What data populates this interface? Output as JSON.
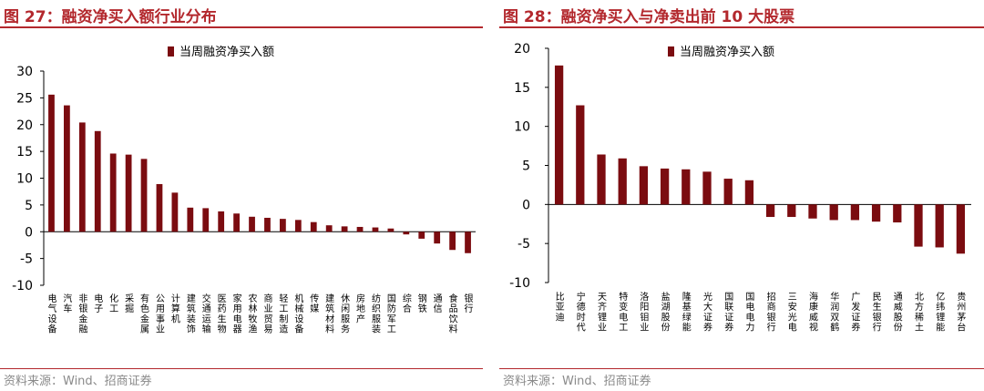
{
  "source_text": "资料来源：Wind、招商证券",
  "colors": {
    "bar": "#7b0c10",
    "title": "#b3282d",
    "source": "#8a8a8a",
    "negative_tick": "#ff0000"
  },
  "chart_data": [
    {
      "type": "bar",
      "title": "图 27：融资净买入额行业分布",
      "legend": "当周融资净买入额",
      "legend_position": "top-center",
      "ylim": [
        -10,
        30
      ],
      "yticks": [
        -10,
        -5,
        0,
        5,
        10,
        15,
        20,
        25,
        30
      ],
      "categories": [
        "电气设备",
        "汽车",
        "非银金融",
        "电子",
        "化工",
        "采掘",
        "有色金属",
        "公用事业",
        "计算机",
        "建筑装饰",
        "交通运输",
        "医药生物",
        "家用电器",
        "农林牧渔",
        "商业贸易",
        "轻工制造",
        "机械设备",
        "传媒",
        "建筑材料",
        "休闲服务",
        "房地产",
        "纺织服装",
        "国防军工",
        "综合",
        "钢铁",
        "通信",
        "食品饮料",
        "银行"
      ],
      "values": [
        25.6,
        23.6,
        20.4,
        18.8,
        14.6,
        14.4,
        13.6,
        8.9,
        7.3,
        4.5,
        4.4,
        3.8,
        3.4,
        2.8,
        2.6,
        2.4,
        2.2,
        1.8,
        1.2,
        1.0,
        0.9,
        0.8,
        0.6,
        -0.5,
        -1.3,
        -2.2,
        -3.4,
        -4.0
      ]
    },
    {
      "type": "bar",
      "title": "图 28：融资净买入与净卖出前 10 大股票",
      "legend": "当周融资净买入额",
      "legend_position": "top-center",
      "ylim": [
        -10,
        20
      ],
      "yticks": [
        -10,
        -5,
        0,
        5,
        10,
        15,
        20
      ],
      "categories": [
        "比亚迪",
        "宁德时代",
        "天齐锂业",
        "特变电工",
        "洛阳钼业",
        "盐湖股份",
        "隆基绿能",
        "光大证券",
        "国联证券",
        "国电电力",
        "招商银行",
        "三安光电",
        "海康威视",
        "华润双鹤",
        "广发证券",
        "民生银行",
        "通威股份",
        "北方稀土",
        "亿纬锂能",
        "贵州茅台"
      ],
      "values": [
        17.8,
        12.7,
        6.4,
        5.9,
        4.9,
        4.6,
        4.5,
        4.2,
        3.3,
        3.1,
        -1.6,
        -1.6,
        -1.8,
        -2.0,
        -2.0,
        -2.2,
        -2.3,
        -5.4,
        -5.5,
        -6.3
      ]
    }
  ]
}
